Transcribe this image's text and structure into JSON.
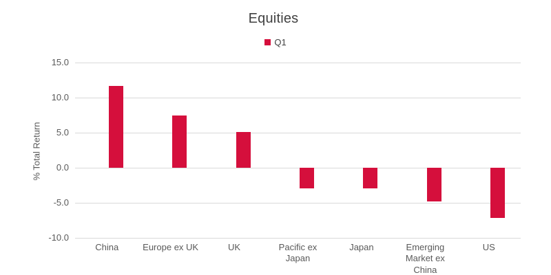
{
  "chart_data": {
    "type": "bar",
    "title": "Equities",
    "ylabel": "% Total Return",
    "xlabel": "",
    "categories": [
      "China",
      "Europe ex UK",
      "UK",
      "Pacific ex Japan",
      "Japan",
      "Emerging Market ex China",
      "US"
    ],
    "series": [
      {
        "name": "Q1",
        "color": "#d50f3c",
        "values": [
          11.7,
          7.5,
          5.1,
          -2.9,
          -2.9,
          -4.8,
          -7.2
        ]
      }
    ],
    "ylim": [
      -10.0,
      15.0
    ],
    "yticks": [
      15.0,
      10.0,
      5.0,
      0.0,
      -5.0,
      -10.0
    ],
    "ytick_labels": [
      "15.0",
      "10.0",
      "5.0",
      "0.0",
      "-5.0",
      "-10.0"
    ],
    "grid": "horizontal",
    "legend_position": "top-center"
  },
  "colors": {
    "bar": "#d50f3c",
    "title_text": "#404040",
    "axis_text": "#595959",
    "gridline": "#d9d9d9",
    "background": "#ffffff"
  }
}
